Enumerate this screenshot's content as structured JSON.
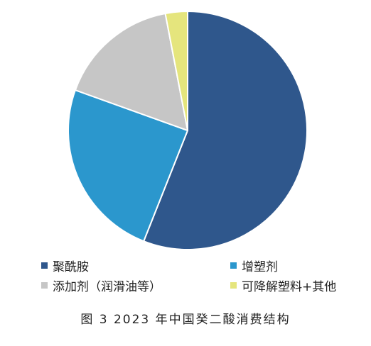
{
  "chart_data": {
    "type": "pie",
    "caption": "图 3  2023 年中国癸二酸消费结构",
    "categories": [
      "聚酰胺",
      "增塑剂",
      "添加剂（润滑油等）",
      "可降解塑料+其他"
    ],
    "values": [
      56,
      24.5,
      16.5,
      3
    ],
    "unit": "%",
    "colors": [
      "#2f578c",
      "#2b97cd",
      "#c6c6c6",
      "#e5e57d"
    ],
    "legend_position": "bottom"
  }
}
